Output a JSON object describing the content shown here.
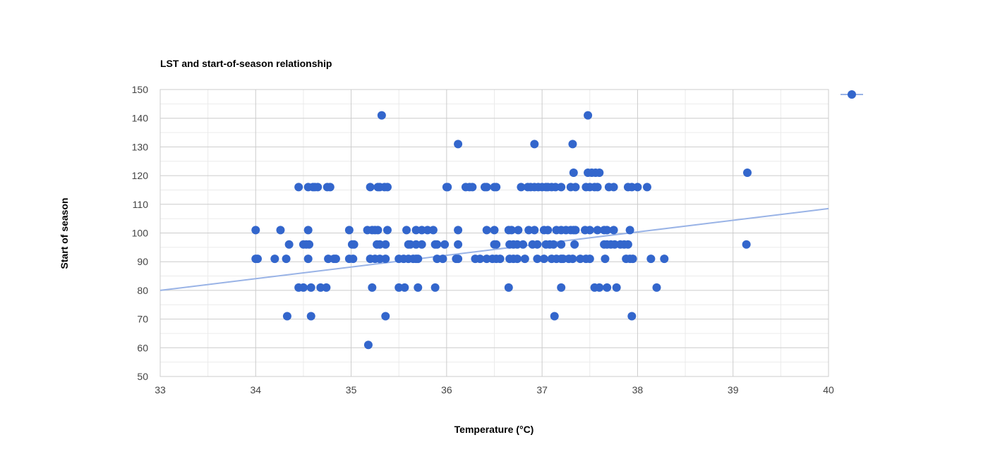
{
  "chart_data": {
    "type": "scatter",
    "title": "LST and start-of-season relationship",
    "xlabel": "Temperature (°C)",
    "ylabel": "Start of season",
    "xlim": [
      33,
      40
    ],
    "ylim": [
      50,
      150
    ],
    "x_ticks": [
      "33",
      "34",
      "35",
      "36",
      "37",
      "38",
      "39",
      "40"
    ],
    "y_ticks": [
      "50",
      "60",
      "70",
      "80",
      "90",
      "100",
      "110",
      "120",
      "130",
      "140",
      "150"
    ],
    "grid": true,
    "legend": "top-right",
    "colors": {
      "points": "#3366cc",
      "trendline": "#99b3e6",
      "major_grid": "#cccccc",
      "minor_grid": "#ebebeb"
    },
    "trendline": {
      "type": "linear",
      "points": [
        [
          33,
          80
        ],
        [
          40,
          108.5
        ]
      ]
    },
    "series": [
      {
        "marker": "circle",
        "points": [
          [
            34.0,
            101
          ],
          [
            34.0,
            91
          ],
          [
            34.02,
            91
          ],
          [
            34.2,
            91
          ],
          [
            34.26,
            101
          ],
          [
            34.32,
            91
          ],
          [
            34.35,
            96
          ],
          [
            34.33,
            71
          ],
          [
            34.45,
            116
          ],
          [
            34.55,
            116
          ],
          [
            34.6,
            116
          ],
          [
            34.62,
            116
          ],
          [
            34.65,
            116
          ],
          [
            34.75,
            116
          ],
          [
            34.78,
            116
          ],
          [
            34.5,
            96
          ],
          [
            34.53,
            96
          ],
          [
            34.56,
            96
          ],
          [
            34.55,
            101
          ],
          [
            34.55,
            91
          ],
          [
            34.45,
            81
          ],
          [
            34.5,
            81
          ],
          [
            34.58,
            81
          ],
          [
            34.58,
            71
          ],
          [
            34.68,
            81
          ],
          [
            34.74,
            81
          ],
          [
            34.76,
            91
          ],
          [
            34.82,
            91
          ],
          [
            34.84,
            91
          ],
          [
            34.98,
            101
          ],
          [
            35.01,
            96
          ],
          [
            35.03,
            96
          ],
          [
            34.98,
            91
          ],
          [
            35.02,
            91
          ],
          [
            35.2,
            116
          ],
          [
            35.28,
            116
          ],
          [
            35.3,
            116
          ],
          [
            35.35,
            116
          ],
          [
            35.38,
            116
          ],
          [
            35.17,
            101
          ],
          [
            35.22,
            101
          ],
          [
            35.25,
            101
          ],
          [
            35.28,
            101
          ],
          [
            35.38,
            101
          ],
          [
            35.27,
            96
          ],
          [
            35.3,
            96
          ],
          [
            35.36,
            96
          ],
          [
            35.2,
            91
          ],
          [
            35.25,
            91
          ],
          [
            35.3,
            91
          ],
          [
            35.36,
            91
          ],
          [
            35.22,
            81
          ],
          [
            35.36,
            71
          ],
          [
            35.18,
            61
          ],
          [
            35.32,
            141
          ],
          [
            35.5,
            91
          ],
          [
            35.55,
            91
          ],
          [
            35.6,
            91
          ],
          [
            35.65,
            91
          ],
          [
            35.68,
            91
          ],
          [
            35.7,
            91
          ],
          [
            35.5,
            81
          ],
          [
            35.56,
            81
          ],
          [
            35.7,
            81
          ],
          [
            35.88,
            81
          ],
          [
            35.6,
            96
          ],
          [
            35.62,
            96
          ],
          [
            35.68,
            96
          ],
          [
            35.74,
            96
          ],
          [
            35.88,
            96
          ],
          [
            35.9,
            96
          ],
          [
            35.58,
            101
          ],
          [
            35.68,
            101
          ],
          [
            35.74,
            101
          ],
          [
            35.8,
            101
          ],
          [
            35.86,
            101
          ],
          [
            35.9,
            91
          ],
          [
            35.96,
            91
          ],
          [
            35.98,
            96
          ],
          [
            36.0,
            116
          ],
          [
            36.01,
            116
          ],
          [
            36.12,
            131
          ],
          [
            36.12,
            101
          ],
          [
            36.12,
            96
          ],
          [
            36.12,
            91
          ],
          [
            36.1,
            91
          ],
          [
            36.2,
            116
          ],
          [
            36.24,
            116
          ],
          [
            36.27,
            116
          ],
          [
            36.4,
            116
          ],
          [
            36.42,
            116
          ],
          [
            36.5,
            116
          ],
          [
            36.52,
            116
          ],
          [
            36.42,
            101
          ],
          [
            36.5,
            101
          ],
          [
            36.5,
            96
          ],
          [
            36.52,
            96
          ],
          [
            36.3,
            91
          ],
          [
            36.35,
            91
          ],
          [
            36.42,
            91
          ],
          [
            36.48,
            91
          ],
          [
            36.52,
            91
          ],
          [
            36.56,
            91
          ],
          [
            36.65,
            101
          ],
          [
            36.68,
            101
          ],
          [
            36.75,
            101
          ],
          [
            36.66,
            96
          ],
          [
            36.7,
            96
          ],
          [
            36.74,
            96
          ],
          [
            36.66,
            91
          ],
          [
            36.7,
            91
          ],
          [
            36.74,
            91
          ],
          [
            36.65,
            81
          ],
          [
            36.8,
            96
          ],
          [
            36.82,
            91
          ],
          [
            36.78,
            116
          ],
          [
            36.85,
            116
          ],
          [
            36.88,
            116
          ],
          [
            36.92,
            116
          ],
          [
            36.96,
            116
          ],
          [
            37.0,
            116
          ],
          [
            37.04,
            116
          ],
          [
            37.06,
            116
          ],
          [
            37.1,
            116
          ],
          [
            37.14,
            116
          ],
          [
            37.2,
            116
          ],
          [
            36.92,
            131
          ],
          [
            36.86,
            101
          ],
          [
            36.92,
            101
          ],
          [
            37.02,
            101
          ],
          [
            37.06,
            101
          ],
          [
            36.9,
            96
          ],
          [
            36.95,
            96
          ],
          [
            37.04,
            96
          ],
          [
            37.08,
            96
          ],
          [
            37.12,
            96
          ],
          [
            37.2,
            96
          ],
          [
            36.95,
            91
          ],
          [
            37.02,
            91
          ],
          [
            37.1,
            91
          ],
          [
            37.15,
            91
          ],
          [
            37.2,
            91
          ],
          [
            37.22,
            91
          ],
          [
            37.13,
            71
          ],
          [
            37.2,
            81
          ],
          [
            37.15,
            101
          ],
          [
            37.2,
            101
          ],
          [
            37.25,
            101
          ],
          [
            37.3,
            101
          ],
          [
            37.33,
            101
          ],
          [
            37.35,
            101
          ],
          [
            37.34,
            96
          ],
          [
            37.28,
            91
          ],
          [
            37.32,
            91
          ],
          [
            37.4,
            91
          ],
          [
            37.32,
            131
          ],
          [
            37.33,
            121
          ],
          [
            37.3,
            116
          ],
          [
            37.35,
            116
          ],
          [
            37.46,
            116
          ],
          [
            37.5,
            116
          ],
          [
            37.55,
            116
          ],
          [
            37.58,
            116
          ],
          [
            37.48,
            121
          ],
          [
            37.52,
            121
          ],
          [
            37.56,
            121
          ],
          [
            37.6,
            121
          ],
          [
            37.48,
            141
          ],
          [
            37.45,
            101
          ],
          [
            37.5,
            101
          ],
          [
            37.58,
            101
          ],
          [
            37.65,
            101
          ],
          [
            37.68,
            101
          ],
          [
            37.75,
            101
          ],
          [
            37.65,
            96
          ],
          [
            37.68,
            96
          ],
          [
            37.72,
            96
          ],
          [
            37.76,
            96
          ],
          [
            37.82,
            96
          ],
          [
            37.86,
            96
          ],
          [
            37.9,
            96
          ],
          [
            37.46,
            91
          ],
          [
            37.5,
            91
          ],
          [
            37.66,
            91
          ],
          [
            37.55,
            81
          ],
          [
            37.6,
            81
          ],
          [
            37.68,
            81
          ],
          [
            37.78,
            81
          ],
          [
            37.7,
            116
          ],
          [
            37.75,
            116
          ],
          [
            37.9,
            116
          ],
          [
            37.94,
            116
          ],
          [
            38.0,
            116
          ],
          [
            38.1,
            116
          ],
          [
            37.92,
            101
          ],
          [
            37.88,
            91
          ],
          [
            37.92,
            91
          ],
          [
            37.95,
            91
          ],
          [
            37.94,
            71
          ],
          [
            38.14,
            91
          ],
          [
            38.28,
            91
          ],
          [
            38.2,
            81
          ],
          [
            39.15,
            121
          ],
          [
            39.14,
            96
          ]
        ]
      }
    ]
  }
}
